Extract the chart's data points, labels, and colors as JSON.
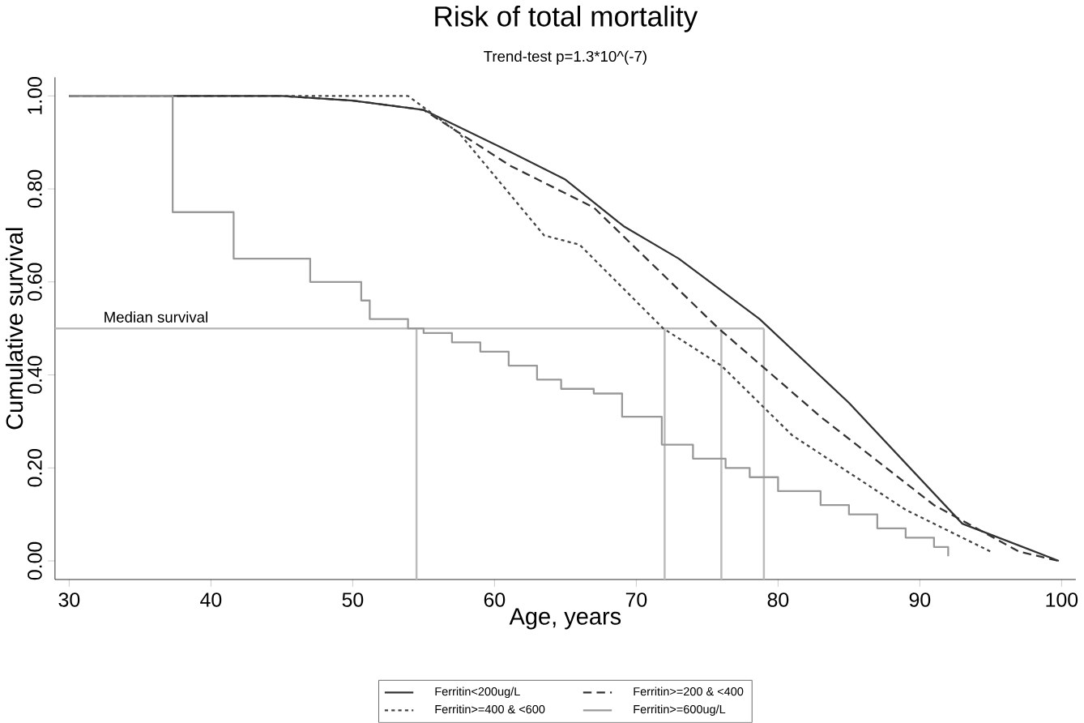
{
  "chart_data": {
    "type": "line",
    "title": "Risk of total mortality",
    "subtitle": "Trend-test p=1.3*10^(-7)",
    "xlabel": "Age, years",
    "ylabel": "Cumulative survival",
    "xlim": [
      29,
      101
    ],
    "ylim": [
      -0.04,
      1.04
    ],
    "xticks": [
      30,
      40,
      50,
      60,
      70,
      80,
      90,
      100
    ],
    "yticks": [
      {
        "value": 0,
        "label": "0.00"
      },
      {
        "value": 0.2,
        "label": "0.20"
      },
      {
        "value": 0.4,
        "label": "0.40"
      },
      {
        "value": 0.6,
        "label": "0.60"
      },
      {
        "value": 0.8,
        "label": "0.80"
      },
      {
        "value": 1,
        "label": "1.00"
      }
    ],
    "legend": "bottom",
    "grid": false,
    "ref_lines": [
      {
        "axis": "y",
        "value": 0.5,
        "label": "Median survival",
        "color": "#bbbbbb"
      },
      {
        "axis": "x",
        "value": 54.5,
        "color": "#bbbbbb"
      },
      {
        "axis": "x",
        "value": 72,
        "color": "#bbbbbb"
      },
      {
        "axis": "x",
        "value": 76,
        "color": "#bbbbbb"
      },
      {
        "axis": "x",
        "value": 79,
        "color": "#bbbbbb"
      }
    ],
    "series": [
      {
        "name": "Ferritin<200ug/L",
        "color": "#333333",
        "line_style": "solid",
        "x": [
          30,
          45,
          50,
          55,
          61.1,
          65,
          69.1,
          73,
          78.7,
          85,
          93,
          99.8
        ],
        "values": [
          1,
          1,
          0.99,
          0.97,
          0.88,
          0.82,
          0.72,
          0.65,
          0.52,
          0.34,
          0.08,
          0.0
        ]
      },
      {
        "name": "Ferritin>=200 & <400",
        "color": "#333333",
        "line_style": "dashed",
        "x": [
          30,
          45,
          50,
          55,
          61.1,
          67,
          75.8,
          83,
          91,
          97,
          99.8
        ],
        "values": [
          1,
          1,
          0.99,
          0.97,
          0.85,
          0.76,
          0.5,
          0.31,
          0.12,
          0.02,
          0.0
        ]
      },
      {
        "name": "Ferritin>=400 & <600",
        "color": "#444444",
        "line_style": "dotted",
        "x": [
          30,
          45,
          53.9,
          57.5,
          63.5,
          66,
          71.9,
          76,
          81,
          89,
          95
        ],
        "values": [
          1,
          1,
          1,
          0.92,
          0.7,
          0.68,
          0.5,
          0.42,
          0.27,
          0.11,
          0.02
        ]
      },
      {
        "name": "Ferritin>=600ug/L",
        "type": "step",
        "color": "#999999",
        "line_style": "solid",
        "x": [
          30,
          37.3,
          41.6,
          47,
          50.6,
          51.2,
          53.9,
          55,
          57,
          59,
          61,
          63,
          64.7,
          67,
          69,
          71.8,
          74,
          76.3,
          78,
          80,
          83,
          85,
          87,
          89,
          91,
          92
        ],
        "values": [
          1,
          0.75,
          0.65,
          0.6,
          0.56,
          0.52,
          0.5,
          0.49,
          0.47,
          0.45,
          0.42,
          0.39,
          0.37,
          0.36,
          0.31,
          0.25,
          0.22,
          0.2,
          0.18,
          0.15,
          0.12,
          0.1,
          0.07,
          0.05,
          0.03,
          0.01
        ]
      }
    ]
  }
}
